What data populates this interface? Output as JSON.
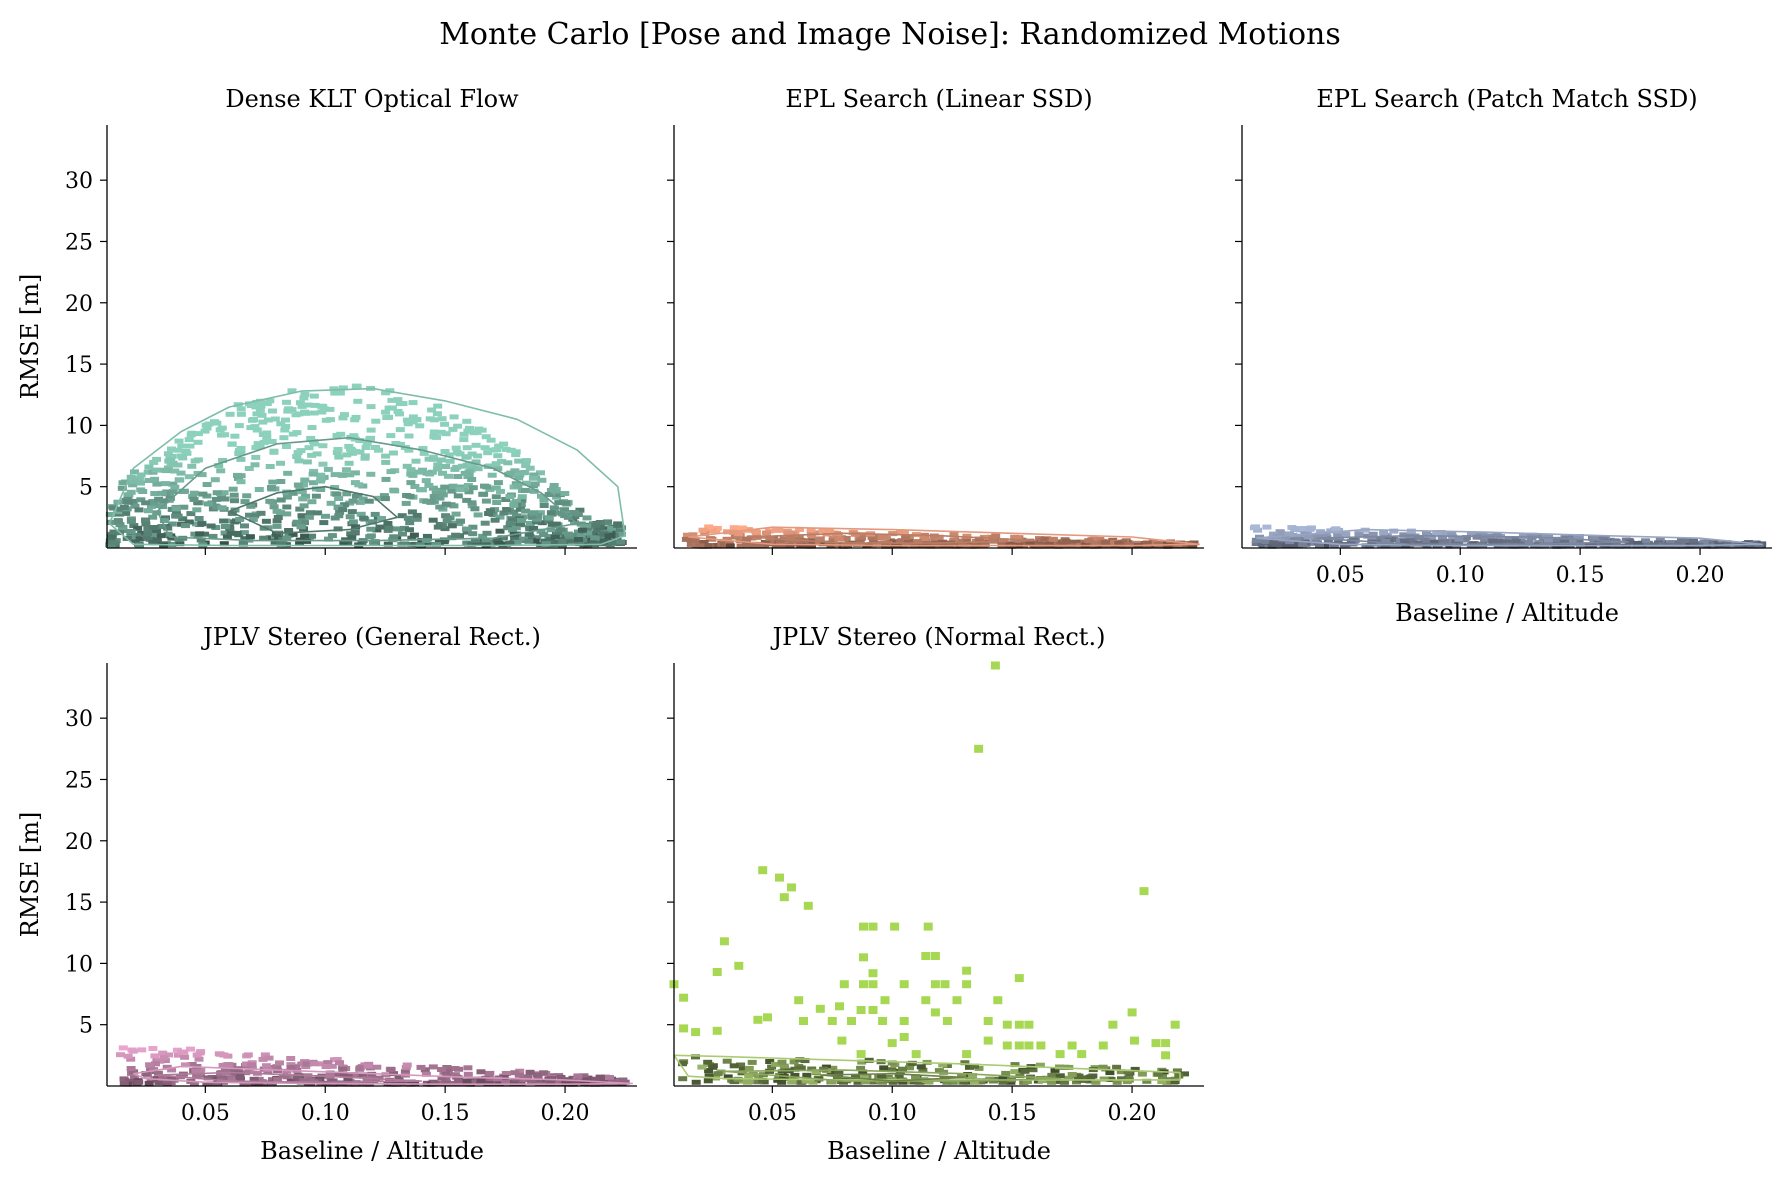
{
  "title": "Monte Carlo [Pose and Image Noise]: Randomized Motions",
  "chart_data": [
    {
      "type": "heatmap",
      "title": "Dense KLT Optical Flow",
      "xlabel": "",
      "ylabel": "RMSE [m]",
      "xlim": [
        0.009,
        0.23
      ],
      "ylim": [
        0,
        34.5
      ],
      "xticks": [],
      "yticks": [
        "5",
        "10",
        "15",
        "20",
        "25",
        "30"
      ],
      "color": "#66c2a5",
      "kde_contours": [
        {
          "x": [
            0.01,
            0.02,
            0.04,
            0.06,
            0.09,
            0.12,
            0.15,
            0.18,
            0.205,
            0.222,
            0.225,
            0.215,
            0.17,
            0.12,
            0.06,
            0.02,
            0.01
          ],
          "y": [
            2.0,
            6.5,
            9.5,
            11.5,
            12.8,
            13.0,
            12.0,
            10.5,
            8.0,
            5.0,
            1.0,
            0.3,
            0.2,
            0.2,
            0.2,
            0.3,
            2.0
          ]
        },
        {
          "x": [
            0.03,
            0.05,
            0.08,
            0.11,
            0.14,
            0.17,
            0.19,
            0.205,
            0.17,
            0.12,
            0.07,
            0.035,
            0.03
          ],
          "y": [
            3.0,
            6.5,
            8.5,
            9.0,
            8.0,
            6.5,
            4.5,
            2.0,
            0.8,
            0.6,
            0.6,
            0.9,
            3.0
          ]
        },
        {
          "x": [
            0.06,
            0.08,
            0.1,
            0.12,
            0.13,
            0.11,
            0.08,
            0.06
          ],
          "y": [
            3.0,
            4.5,
            5.0,
            4.2,
            2.5,
            1.5,
            1.2,
            3.0
          ]
        }
      ]
    },
    {
      "type": "heatmap",
      "title": "EPL Search (Linear SSD)",
      "xlabel": "",
      "ylabel": "",
      "xlim": [
        0.009,
        0.23
      ],
      "ylim": [
        0,
        34.5
      ],
      "xticks": [],
      "yticks": [],
      "color": "#fc8d62",
      "kde_contours": [
        {
          "x": [
            0.015,
            0.05,
            0.1,
            0.15,
            0.2,
            0.228,
            0.2,
            0.15,
            0.1,
            0.05,
            0.015
          ],
          "y": [
            0.9,
            1.7,
            1.5,
            1.2,
            0.9,
            0.3,
            0.2,
            0.2,
            0.2,
            0.3,
            0.9
          ]
        },
        {
          "x": [
            0.04,
            0.08,
            0.12,
            0.16,
            0.12,
            0.08,
            0.04
          ],
          "y": [
            0.9,
            1.2,
            1.0,
            0.6,
            0.4,
            0.4,
            0.9
          ]
        }
      ]
    },
    {
      "type": "heatmap",
      "title": "EPL Search (Patch Match SSD)",
      "xlabel": "Baseline / Altitude",
      "ylabel": "",
      "xlim": [
        0.009,
        0.23
      ],
      "ylim": [
        0,
        34.5
      ],
      "xticks": [
        "0.05",
        "0.10",
        "0.15",
        "0.20"
      ],
      "yticks": [],
      "color": "#8da0cb",
      "kde_contours": [
        {
          "x": [
            0.015,
            0.06,
            0.11,
            0.16,
            0.2,
            0.226,
            0.2,
            0.15,
            0.1,
            0.05,
            0.015
          ],
          "y": [
            0.8,
            1.5,
            1.3,
            1.0,
            0.8,
            0.3,
            0.2,
            0.2,
            0.2,
            0.3,
            0.8
          ]
        },
        {
          "x": [
            0.04,
            0.08,
            0.13,
            0.17,
            0.13,
            0.08,
            0.04
          ],
          "y": [
            0.8,
            1.0,
            0.9,
            0.5,
            0.3,
            0.3,
            0.8
          ]
        }
      ]
    },
    {
      "type": "heatmap",
      "title": "JPLV Stereo (General Rect.)",
      "xlabel": "Baseline / Altitude",
      "ylabel": "RMSE [m]",
      "xlim": [
        0.009,
        0.23
      ],
      "ylim": [
        0,
        34.5
      ],
      "xticks": [
        "0.05",
        "0.10",
        "0.15",
        "0.20"
      ],
      "yticks": [
        "5",
        "10",
        "15",
        "20",
        "25",
        "30"
      ],
      "color": "#e78ac3",
      "kde_contours": [
        {
          "x": [
            0.02,
            0.04,
            0.08,
            0.12,
            0.16,
            0.2,
            0.228,
            0.2,
            0.15,
            0.1,
            0.05,
            0.025,
            0.02
          ],
          "y": [
            1.0,
            1.6,
            1.3,
            1.0,
            0.7,
            0.5,
            0.2,
            0.15,
            0.15,
            0.2,
            0.3,
            0.6,
            1.0
          ]
        },
        {
          "x": [
            0.03,
            0.06,
            0.1,
            0.14,
            0.1,
            0.06,
            0.03
          ],
          "y": [
            0.9,
            1.1,
            0.8,
            0.4,
            0.3,
            0.4,
            0.9
          ]
        }
      ]
    },
    {
      "type": "heatmap",
      "title": "JPLV Stereo (Normal Rect.)",
      "xlabel": "Baseline / Altitude",
      "ylabel": "",
      "xlim": [
        0.009,
        0.23
      ],
      "ylim": [
        0,
        34.5
      ],
      "xticks": [
        "0.05",
        "0.10",
        "0.15",
        "0.20"
      ],
      "yticks": [],
      "color": "#a6d854",
      "outliers": [
        {
          "x": 0.143,
          "y": 34.3
        },
        {
          "x": 0.136,
          "y": 27.5
        },
        {
          "x": 0.046,
          "y": 17.6
        },
        {
          "x": 0.053,
          "y": 17.0
        },
        {
          "x": 0.058,
          "y": 16.2
        },
        {
          "x": 0.205,
          "y": 15.9
        },
        {
          "x": 0.055,
          "y": 15.4
        },
        {
          "x": 0.065,
          "y": 14.7
        },
        {
          "x": 0.088,
          "y": 13.0
        },
        {
          "x": 0.092,
          "y": 13.0
        },
        {
          "x": 0.101,
          "y": 13.0
        },
        {
          "x": 0.115,
          "y": 13.0
        },
        {
          "x": 0.03,
          "y": 11.8
        },
        {
          "x": 0.088,
          "y": 10.5
        },
        {
          "x": 0.114,
          "y": 10.6
        },
        {
          "x": 0.118,
          "y": 10.6
        },
        {
          "x": 0.036,
          "y": 9.8
        },
        {
          "x": 0.027,
          "y": 9.3
        },
        {
          "x": 0.092,
          "y": 9.2
        },
        {
          "x": 0.131,
          "y": 9.4
        },
        {
          "x": 0.009,
          "y": 8.3
        },
        {
          "x": 0.08,
          "y": 8.3
        },
        {
          "x": 0.088,
          "y": 8.3
        },
        {
          "x": 0.092,
          "y": 8.3
        },
        {
          "x": 0.105,
          "y": 8.3
        },
        {
          "x": 0.118,
          "y": 8.3
        },
        {
          "x": 0.122,
          "y": 8.3
        },
        {
          "x": 0.131,
          "y": 8.3
        },
        {
          "x": 0.153,
          "y": 8.8
        },
        {
          "x": 0.013,
          "y": 7.2
        },
        {
          "x": 0.061,
          "y": 7.0
        },
        {
          "x": 0.097,
          "y": 7.0
        },
        {
          "x": 0.114,
          "y": 7.0
        },
        {
          "x": 0.127,
          "y": 7.0
        },
        {
          "x": 0.144,
          "y": 7.0
        },
        {
          "x": 0.07,
          "y": 6.3
        },
        {
          "x": 0.078,
          "y": 6.5
        },
        {
          "x": 0.087,
          "y": 6.2
        },
        {
          "x": 0.092,
          "y": 6.2
        },
        {
          "x": 0.118,
          "y": 6.0
        },
        {
          "x": 0.2,
          "y": 6.0
        },
        {
          "x": 0.044,
          "y": 5.4
        },
        {
          "x": 0.048,
          "y": 5.6
        },
        {
          "x": 0.063,
          "y": 5.3
        },
        {
          "x": 0.075,
          "y": 5.3
        },
        {
          "x": 0.083,
          "y": 5.3
        },
        {
          "x": 0.096,
          "y": 5.3
        },
        {
          "x": 0.105,
          "y": 5.3
        },
        {
          "x": 0.123,
          "y": 5.3
        },
        {
          "x": 0.14,
          "y": 5.3
        },
        {
          "x": 0.148,
          "y": 5.0
        },
        {
          "x": 0.153,
          "y": 5.0
        },
        {
          "x": 0.157,
          "y": 5.0
        },
        {
          "x": 0.192,
          "y": 5.0
        },
        {
          "x": 0.218,
          "y": 5.0
        },
        {
          "x": 0.013,
          "y": 4.7
        },
        {
          "x": 0.018,
          "y": 4.4
        },
        {
          "x": 0.027,
          "y": 4.5
        },
        {
          "x": 0.105,
          "y": 4.0
        },
        {
          "x": 0.079,
          "y": 3.7
        },
        {
          "x": 0.1,
          "y": 3.5
        },
        {
          "x": 0.14,
          "y": 3.7
        },
        {
          "x": 0.148,
          "y": 3.3
        },
        {
          "x": 0.153,
          "y": 3.3
        },
        {
          "x": 0.157,
          "y": 3.3
        },
        {
          "x": 0.162,
          "y": 3.3
        },
        {
          "x": 0.175,
          "y": 3.3
        },
        {
          "x": 0.188,
          "y": 3.3
        },
        {
          "x": 0.201,
          "y": 3.7
        },
        {
          "x": 0.21,
          "y": 3.5
        },
        {
          "x": 0.214,
          "y": 3.5
        },
        {
          "x": 0.214,
          "y": 2.5
        },
        {
          "x": 0.087,
          "y": 2.6
        },
        {
          "x": 0.11,
          "y": 2.6
        },
        {
          "x": 0.131,
          "y": 2.6
        },
        {
          "x": 0.17,
          "y": 2.6
        },
        {
          "x": 0.179,
          "y": 2.6
        }
      ],
      "kde_contours": [
        {
          "x": [
            0.009,
            0.03,
            0.08,
            0.13,
            0.18,
            0.22,
            0.22,
            0.15,
            0.08,
            0.03,
            0.015,
            0.009
          ],
          "y": [
            2.5,
            2.4,
            2.1,
            1.8,
            1.4,
            1.1,
            0.5,
            0.5,
            0.5,
            0.6,
            0.8,
            2.5
          ]
        },
        {
          "x": [
            0.03,
            0.08,
            0.13,
            0.17,
            0.13,
            0.08,
            0.03
          ],
          "y": [
            1.2,
            1.3,
            1.0,
            0.6,
            0.4,
            0.4,
            1.2
          ]
        },
        {
          "x": [
            0.07,
            0.1,
            0.13,
            0.1,
            0.07
          ],
          "y": [
            0.9,
            1.0,
            0.7,
            0.4,
            0.9
          ]
        }
      ]
    }
  ]
}
